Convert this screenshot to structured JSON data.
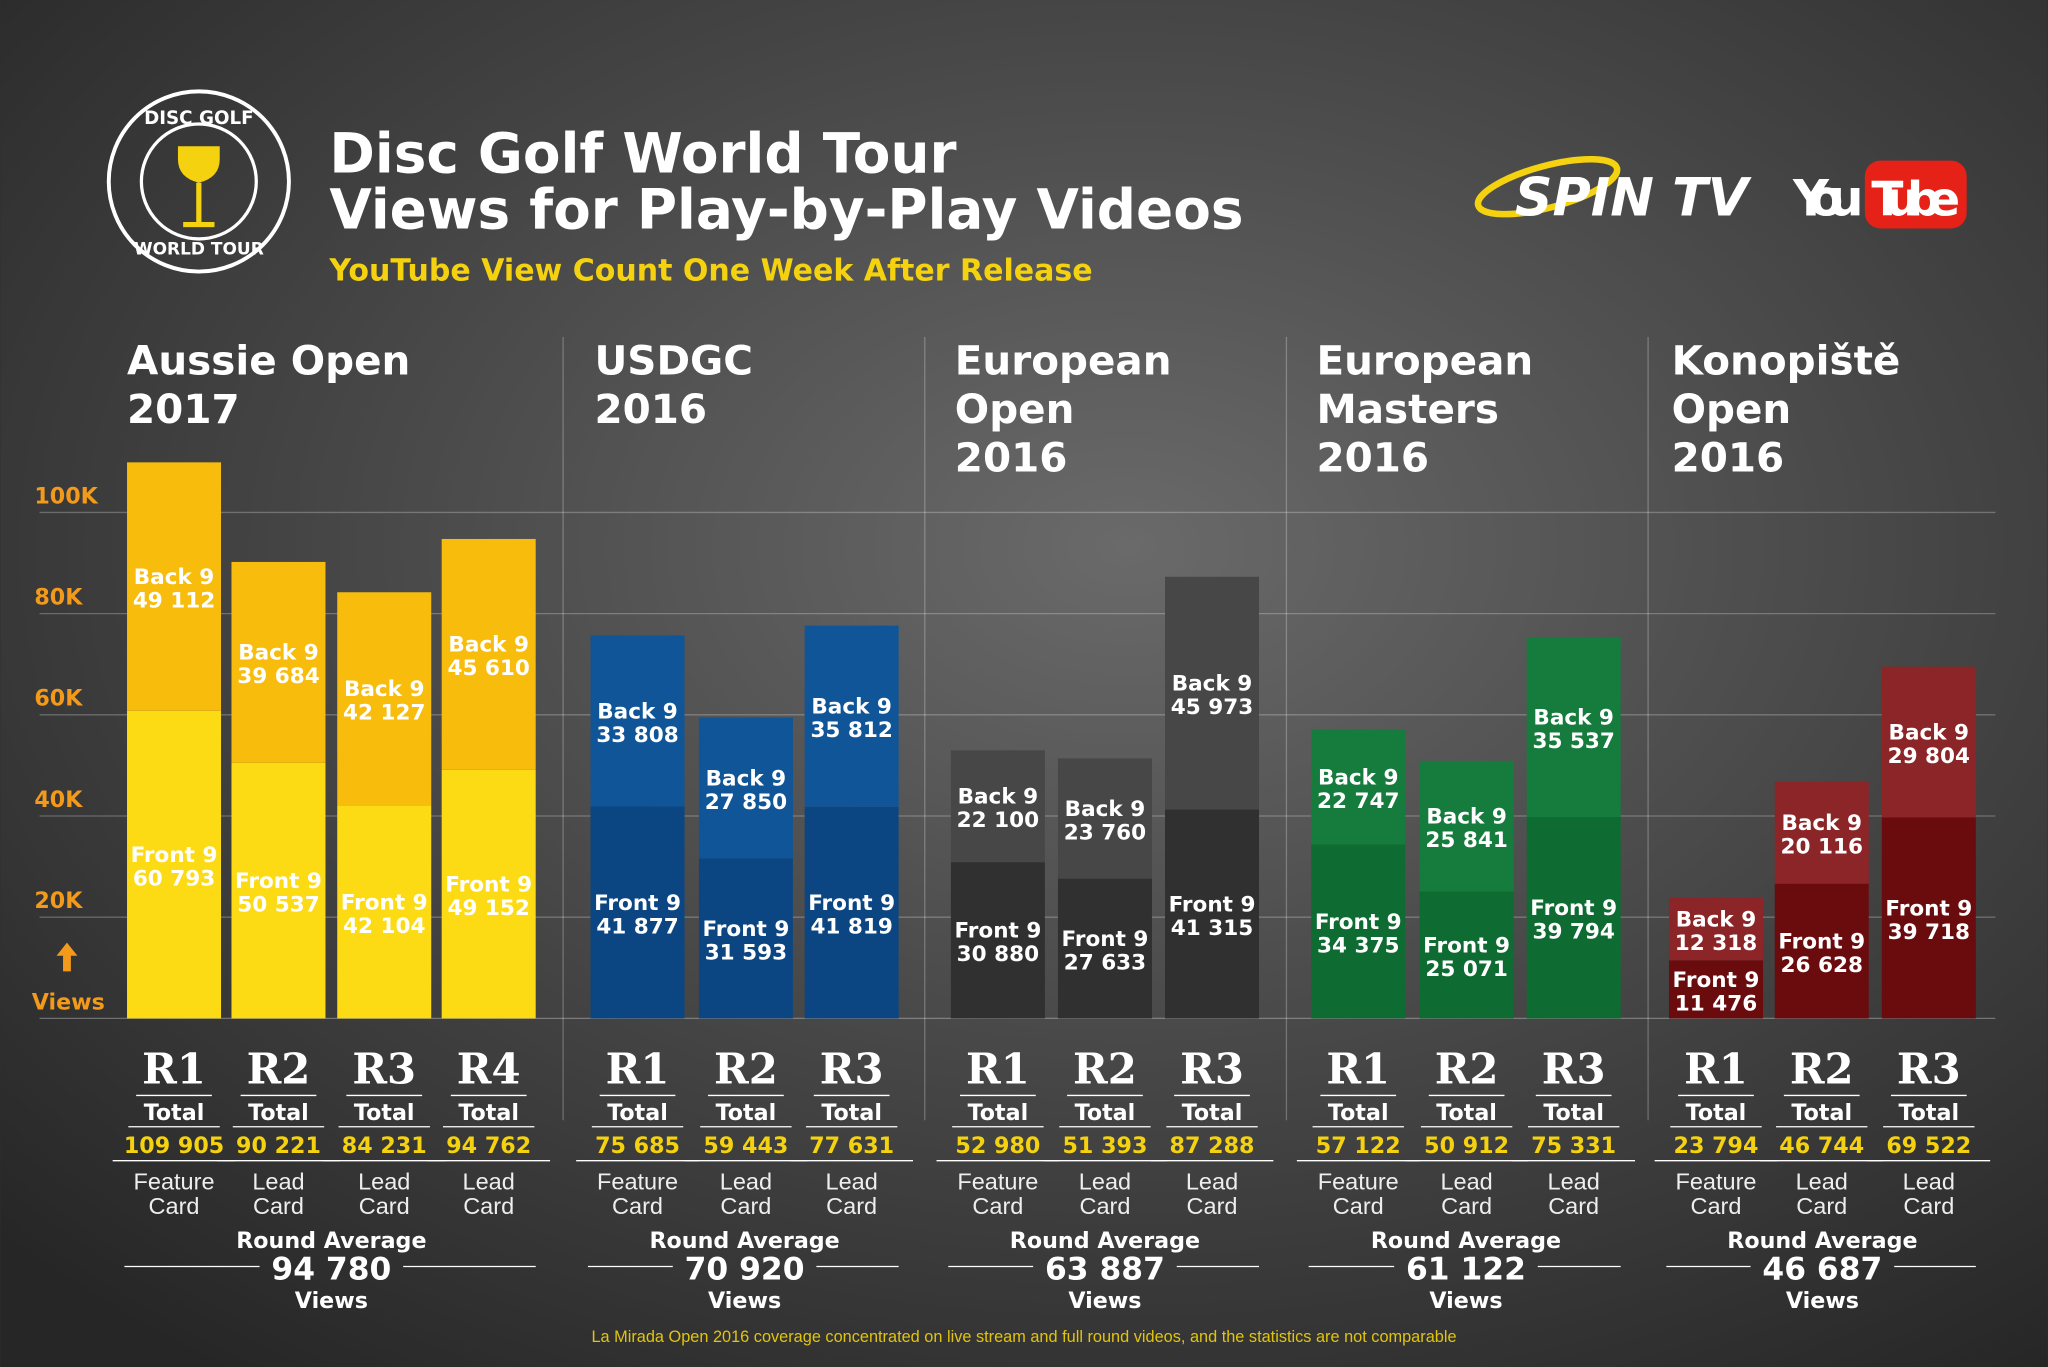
{
  "header": {
    "title_line1": "Disc Golf World Tour",
    "title_line2": "Views for Play-by-Play Videos",
    "subtitle": "YouTube View Count One Week After Release",
    "logo_text_top": "DISC GOLF",
    "logo_text_bottom": "WORLD TOUR",
    "spintv_logo": "SPIN TV",
    "youtube_logo_you": "You",
    "youtube_logo_tube": "Tube"
  },
  "colors": {
    "axis_label": "#f39a1a",
    "highlight": "#f5d20f"
  },
  "labels": {
    "back9": "Back 9",
    "front9": "Front 9",
    "total": "Total",
    "round_average": "Round Average",
    "views": "Views"
  },
  "footnote": "La Mirada Open 2016 coverage concentrated on live stream and full  round videos, and the statistics are not comparable",
  "chart_data": {
    "type": "bar",
    "stacked": true,
    "title": "Disc Golf World Tour Views for Play-by-Play Videos",
    "ylabel": "Views",
    "ylim": [
      0,
      110000
    ],
    "yticks": [
      "20K",
      "40K",
      "60K",
      "80K",
      "100K"
    ],
    "ytick_values": [
      20000,
      40000,
      60000,
      80000,
      100000
    ],
    "grid": true,
    "series_names": [
      "Front 9",
      "Back 9"
    ],
    "events": [
      {
        "name_lines": [
          "Aussie Open",
          "2017"
        ],
        "front_color": "#fddb14",
        "back_color": "#f7bc0c",
        "round_average": 94780,
        "rounds": [
          {
            "label": "R1",
            "front": 60793,
            "back": 49112,
            "total": 109905,
            "card": [
              "Feature",
              "Card"
            ]
          },
          {
            "label": "R2",
            "front": 50537,
            "back": 39684,
            "total": 90221,
            "card": [
              "Lead",
              "Card"
            ]
          },
          {
            "label": "R3",
            "front": 42104,
            "back": 42127,
            "total": 84231,
            "card": [
              "Lead",
              "Card"
            ]
          },
          {
            "label": "R4",
            "front": 49152,
            "back": 45610,
            "total": 94762,
            "card": [
              "Lead",
              "Card"
            ]
          }
        ]
      },
      {
        "name_lines": [
          "USDGC",
          "2016"
        ],
        "front_color": "#0c4682",
        "back_color": "#105597",
        "round_average": 70920,
        "rounds": [
          {
            "label": "R1",
            "front": 41877,
            "back": 33808,
            "total": 75685,
            "card": [
              "Feature",
              "Card"
            ]
          },
          {
            "label": "R2",
            "front": 31593,
            "back": 27850,
            "total": 59443,
            "card": [
              "Lead",
              "Card"
            ]
          },
          {
            "label": "R3",
            "front": 41819,
            "back": 35812,
            "total": 77631,
            "card": [
              "Lead",
              "Card"
            ]
          }
        ]
      },
      {
        "name_lines": [
          "European",
          "Open",
          "2016"
        ],
        "front_color": "#303030",
        "back_color": "#474747",
        "round_average": 63887,
        "rounds": [
          {
            "label": "R1",
            "front": 30880,
            "back": 22100,
            "total": 52980,
            "card": [
              "Feature",
              "Card"
            ]
          },
          {
            "label": "R2",
            "front": 27633,
            "back": 23760,
            "total": 51393,
            "card": [
              "Lead",
              "Card"
            ]
          },
          {
            "label": "R3",
            "front": 41315,
            "back": 45973,
            "total": 87288,
            "card": [
              "Lead",
              "Card"
            ]
          }
        ]
      },
      {
        "name_lines": [
          "European",
          "Masters",
          "2016"
        ],
        "front_color": "#0e6b31",
        "back_color": "#167c3d",
        "round_average": 61122,
        "rounds": [
          {
            "label": "R1",
            "front": 34375,
            "back": 22747,
            "total": 57122,
            "card": [
              "Feature",
              "Card"
            ]
          },
          {
            "label": "R2",
            "front": 25071,
            "back": 25841,
            "total": 50912,
            "card": [
              "Lead",
              "Card"
            ]
          },
          {
            "label": "R3",
            "front": 39794,
            "back": 35537,
            "total": 75331,
            "card": [
              "Lead",
              "Card"
            ]
          }
        ]
      },
      {
        "name_lines": [
          "Konopiště",
          "Open",
          "2016"
        ],
        "front_color": "#6a0b0d",
        "back_color": "#8b2527",
        "round_average": 46687,
        "rounds": [
          {
            "label": "R1",
            "front": 11476,
            "back": 12318,
            "total": 23794,
            "card": [
              "Feature",
              "Card"
            ]
          },
          {
            "label": "R2",
            "front": 26628,
            "back": 20116,
            "total": 46744,
            "card": [
              "Lead",
              "Card"
            ]
          },
          {
            "label": "R3",
            "front": 39718,
            "back": 29804,
            "total": 69522,
            "card": [
              "Lead",
              "Card"
            ]
          }
        ]
      }
    ]
  }
}
